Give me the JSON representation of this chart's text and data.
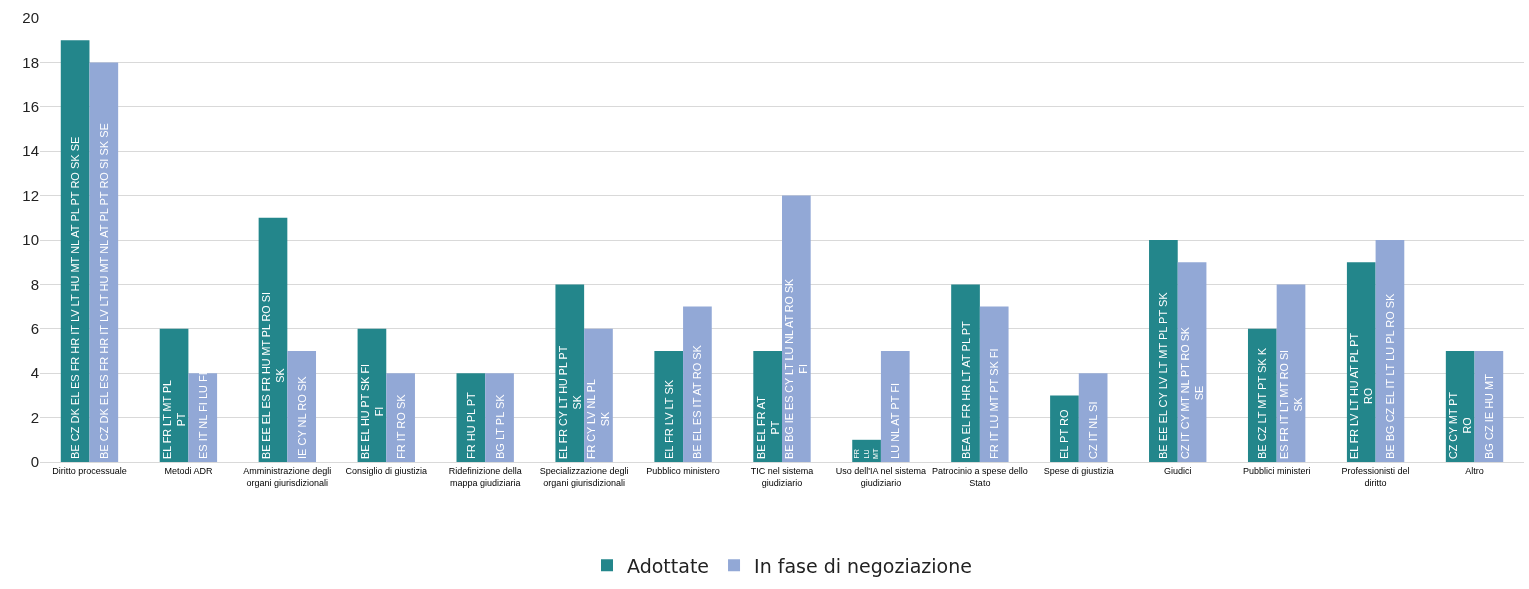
{
  "chart_data": {
    "type": "bar",
    "categories": [
      "Diritto processuale",
      "Metodi ADR",
      "Amministrazione degli organi giurisdizionali",
      "Consiglio di giustizia",
      "Ridefinizione della mappa giudiziaria",
      "Specializzazione degli organi giurisdizionali",
      "Pubblico ministero",
      "TIC nel sistema giudiziario",
      "Uso dell'IA nel sistema giudiziario",
      "Patrocinio a spese dello Stato",
      "Spese di giustizia",
      "Giudici",
      "Pubblici ministeri",
      "Professionisti del diritto",
      "Altro"
    ],
    "series": [
      {
        "name": "Adottate",
        "color": "#23868b",
        "values": [
          19,
          6,
          11,
          6,
          4,
          8,
          5,
          5,
          1,
          8,
          3,
          10,
          6,
          9,
          5
        ],
        "value_labels": [
          "BE CZ DK EL ES FR HR IT LV LT HU MT NL AT PL PT RO SK SE",
          "EL FR LT MT PL\nPT",
          "BE EE EL ES FR HU MT PL RO SI\nSK",
          "BE EL HU PT SK FI\nFI",
          "FR HU PL PT",
          "EL FR CY LT HU PL PT\nSK",
          "EL FR LV LT SK",
          "BE EL FR AT\nPT",
          "FR\nLU\nMT",
          "BEA EL FR HR LT AT PL PT",
          "EL PT RO",
          "BE EE EL CY LV LT MT PL PT SK",
          "BE CZ LT MT PT SK K",
          "EL FR LV LT HU AT PL PT\nRO",
          "CZ CY MT PT\nRO"
        ]
      },
      {
        "name": "In fase di negoziazione",
        "color": "#92a8d6",
        "values": [
          18,
          4,
          5,
          4,
          4,
          6,
          7,
          12,
          5,
          7,
          4,
          9,
          8,
          10,
          5
        ],
        "value_labels": [
          "BE CZ DK EL ES FR HR IT LV LT HU MT NL AT PL PT RO SI SK SE",
          "ES IT NL FI LU FI",
          "IE CY NL RO SK",
          "FR IT RO SK",
          "BG LT PL SK",
          "FR CY LV NL PL\nSK",
          "BE EL ES IT AT RO SK",
          "BE BG IE ES CY LT LU NL AT RO SK\nFI",
          "LU NL AT PT FI",
          "FR IT LU MT PT SK FI",
          "CZ IT NL SI",
          "CZ IT CY MT NL PT RO SK\nSE",
          "ES FR IT LT MT RO SI\nSK",
          "BE BG CZ EL IT LT LU PL RO SK",
          "BG CZ IE HU MT"
        ]
      }
    ],
    "ylim": [
      0,
      20
    ],
    "yticks": [
      0,
      2,
      4,
      6,
      8,
      10,
      12,
      14,
      16,
      18,
      20
    ],
    "grid": "y",
    "legend": "bottom"
  }
}
